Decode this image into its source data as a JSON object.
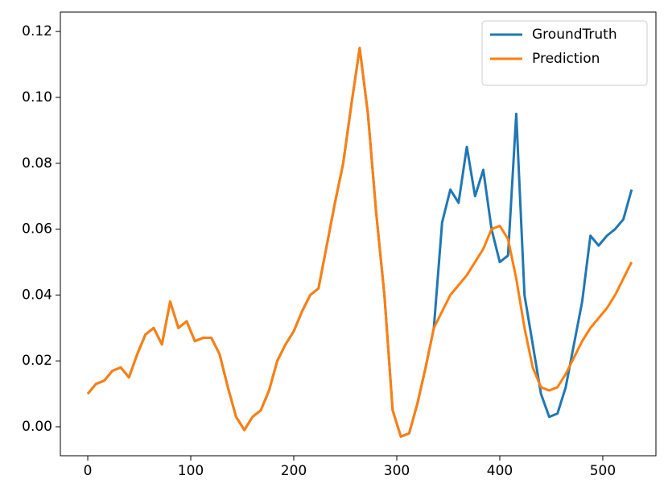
{
  "chart_data": {
    "type": "line",
    "x": [
      0,
      8,
      16,
      24,
      32,
      40,
      48,
      56,
      64,
      72,
      80,
      88,
      96,
      104,
      112,
      120,
      128,
      136,
      144,
      152,
      160,
      168,
      176,
      184,
      192,
      200,
      208,
      216,
      224,
      232,
      240,
      248,
      256,
      264,
      272,
      280,
      288,
      296,
      304,
      312,
      320,
      328,
      336,
      344,
      352,
      360,
      368,
      376,
      384,
      392,
      400,
      408,
      416,
      424,
      432,
      440,
      448,
      456,
      464,
      472,
      480,
      488,
      496,
      504,
      512,
      520,
      528
    ],
    "series": [
      {
        "name": "GroundTruth",
        "color": "#1f77b4",
        "values": [
          0.01,
          0.013,
          0.014,
          0.017,
          0.018,
          0.015,
          0.022,
          0.028,
          0.03,
          0.025,
          0.038,
          0.03,
          0.032,
          0.026,
          0.027,
          0.027,
          0.022,
          0.012,
          0.003,
          -0.001,
          0.003,
          0.005,
          0.011,
          0.02,
          0.025,
          0.029,
          0.035,
          0.04,
          0.042,
          0.055,
          0.068,
          0.08,
          0.098,
          0.115,
          0.095,
          0.065,
          0.04,
          0.005,
          -0.003,
          -0.002,
          0.007,
          0.018,
          0.03,
          0.062,
          0.072,
          0.068,
          0.085,
          0.07,
          0.078,
          0.06,
          0.05,
          0.052,
          0.095,
          0.04,
          0.025,
          0.01,
          0.003,
          0.004,
          0.012,
          0.025,
          0.038,
          0.058,
          0.055,
          0.058,
          0.06,
          0.063,
          0.072
        ]
      },
      {
        "name": "Prediction",
        "color": "#ff7f0e",
        "values": [
          0.01,
          0.013,
          0.014,
          0.017,
          0.018,
          0.015,
          0.022,
          0.028,
          0.03,
          0.025,
          0.038,
          0.03,
          0.032,
          0.026,
          0.027,
          0.027,
          0.022,
          0.012,
          0.003,
          -0.001,
          0.003,
          0.005,
          0.011,
          0.02,
          0.025,
          0.029,
          0.035,
          0.04,
          0.042,
          0.055,
          0.068,
          0.08,
          0.098,
          0.115,
          0.095,
          0.065,
          0.04,
          0.005,
          -0.003,
          -0.002,
          0.007,
          0.018,
          0.03,
          0.035,
          0.04,
          0.043,
          0.046,
          0.05,
          0.054,
          0.06,
          0.061,
          0.057,
          0.045,
          0.03,
          0.018,
          0.012,
          0.011,
          0.012,
          0.016,
          0.021,
          0.026,
          0.03,
          0.033,
          0.036,
          0.04,
          0.045,
          0.05
        ]
      }
    ],
    "xlim": [
      -26.6,
      551.6
    ],
    "xticks": [
      0,
      100,
      200,
      300,
      400,
      500
    ],
    "ylim": [
      -0.0088,
      0.1259
    ],
    "yticks": [
      {
        "value": 0,
        "label": "0.00"
      },
      {
        "value": 0.02,
        "label": "0.02"
      },
      {
        "value": 0.04,
        "label": "0.04"
      },
      {
        "value": 0.06,
        "label": "0.06"
      },
      {
        "value": 0.08,
        "label": "0.08"
      },
      {
        "value": 0.1,
        "label": "0.10"
      },
      {
        "value": 0.12,
        "label": "0.12"
      }
    ],
    "legend": "upper right"
  }
}
